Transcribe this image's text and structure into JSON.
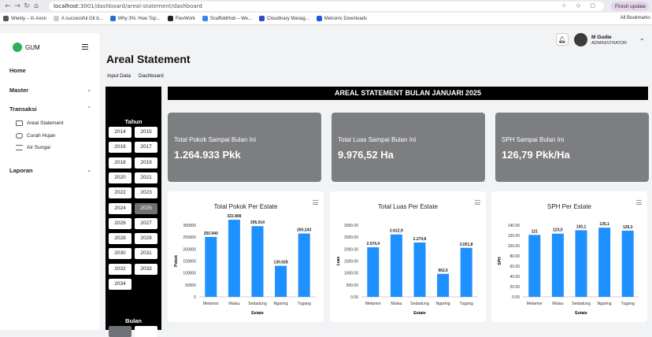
{
  "browser": {
    "url_host": "localhost",
    "url_path": ":3001/dashboard/areal-statement/dashboard",
    "update_label": "Finish update",
    "bookmarks": [
      "Wieldy – G-Axon",
      "A successful Git b...",
      "Why 3%: How Top...",
      "FlexWork",
      "ScaffoldHub – We...",
      "Cloudinary Manag...",
      "Metronic Downloads"
    ],
    "all_bookmarks": "All Bookmarks"
  },
  "sidebar": {
    "logo": "GUM",
    "menu": [
      {
        "label": "Home"
      },
      {
        "label": "Master"
      },
      {
        "label": "Transaksi"
      },
      {
        "label": "Laporan"
      }
    ],
    "transaksi_items": [
      "Areal Statement",
      "Curah Hujan",
      "Air Sungai"
    ]
  },
  "user": {
    "name": "M Gudie",
    "role": "ADMINISTRATOR"
  },
  "page": {
    "title": "Areal Statement",
    "tabs": [
      "Input Data",
      "Dashboard"
    ]
  },
  "filter": {
    "tahun_label": "Tahun",
    "bulan_label": "Bulan",
    "years": [
      "2014",
      "2015",
      "2016",
      "2017",
      "2018",
      "2019",
      "2020",
      "2021",
      "2022",
      "2023",
      "2024",
      "2025",
      "2026",
      "2027",
      "2028",
      "2029",
      "2030",
      "2031",
      "2032",
      "2033",
      "2034"
    ],
    "selected_year": "2025"
  },
  "banner": "AREAL STATEMENT BULAN JANUARI 2025",
  "stats": [
    {
      "label": "Total Pokok Sampai Bulan Ini",
      "value": "1.264.933 Pkk"
    },
    {
      "label": "Total Luas Sampai Bulan Ini",
      "value": "9.976,52 Ha"
    },
    {
      "label": "SPH Sampai Bulan Ini",
      "value": "126,79 Pkk/Ha"
    }
  ],
  "colors": {
    "bar": "#1e90ff",
    "accent": "#2eae58"
  },
  "chart_data": [
    {
      "type": "bar",
      "title": "Total Pokok Per Estate",
      "xlabel": "Estate",
      "ylabel": "Pokok",
      "categories": [
        "Melamor",
        "Mulau",
        "Sedadung",
        "Ngaring",
        "Tugang"
      ],
      "values": [
        250940,
        322808,
        295914,
        130028,
        265243
      ],
      "labels": [
        "250.940",
        "322.808",
        "295.914",
        "130.028",
        "265.243"
      ],
      "ylim": [
        0,
        300000
      ],
      "yticks": [
        "0",
        "50000",
        "100000",
        "150000",
        "200000",
        "250000",
        "300000"
      ]
    },
    {
      "type": "bar",
      "title": "Total Luas Per Estate",
      "xlabel": "Estate",
      "ylabel": "Luas",
      "categories": [
        "Melamor",
        "Mulau",
        "Sedadung",
        "Ngaring",
        "Tugang"
      ],
      "values": [
        2074.4,
        2612.9,
        2274.8,
        962.6,
        2051.8
      ],
      "labels": [
        "2.074,4",
        "2.612,9",
        "2.274,8",
        "962,6",
        "2.051,8"
      ],
      "ylim": [
        0,
        3000
      ],
      "yticks": [
        "0.00",
        "500.00",
        "1000.00",
        "1500.00",
        "2000.00",
        "2500.00",
        "3000.00"
      ]
    },
    {
      "type": "bar",
      "title": "SPH Per Estate",
      "xlabel": "Estate",
      "ylabel": "SPH",
      "categories": [
        "Melamor",
        "Mulau",
        "Sedadung",
        "Ngaring",
        "Tugang"
      ],
      "values": [
        121,
        123.5,
        130.1,
        135.1,
        129.3
      ],
      "labels": [
        "121",
        "123,5",
        "130,1",
        "135,1",
        "129,3"
      ],
      "ylim": [
        0,
        140
      ],
      "yticks": [
        "0.00",
        "20.00",
        "40.00",
        "60.00",
        "80.00",
        "100.00",
        "120.00",
        "140.00"
      ]
    }
  ]
}
